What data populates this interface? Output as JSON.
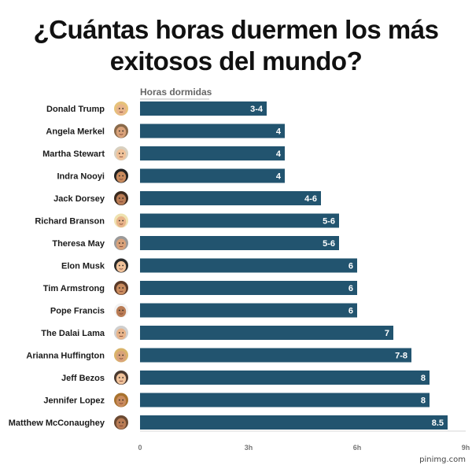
{
  "chart_data": {
    "type": "bar",
    "orientation": "horizontal",
    "title_line1": "¿Cuántas horas duermen los más",
    "title_line2": "exitosos del mundo?",
    "xlabel": "Horas dormidas",
    "xlim": [
      0,
      9
    ],
    "xticks": [
      0,
      3,
      6,
      9
    ],
    "xtick_labels": [
      "0",
      "3h",
      "6h",
      "9h"
    ],
    "grid": false,
    "bar_color": "#22546f",
    "categories": [
      "Donald Trump",
      "Angela Merkel",
      "Martha Stewart",
      "Indra Nooyi",
      "Jack Dorsey",
      "Richard Branson",
      "Theresa May",
      "Elon Musk",
      "Tim Armstrong",
      "Pope Francis",
      "The Dalai Lama",
      "Arianna Huffington",
      "Jeff Bezos",
      "Jennifer Lopez",
      "Matthew McConaughey"
    ],
    "values": [
      3.5,
      4,
      4,
      4,
      5,
      5.5,
      5.5,
      6,
      6,
      6,
      7,
      7.5,
      8,
      8,
      8.5
    ],
    "value_labels": [
      "3-4",
      "4",
      "4",
      "4",
      "4-6",
      "5-6",
      "5-6",
      "6",
      "6",
      "6",
      "7",
      "7-8",
      "8",
      "8",
      "8.5"
    ]
  },
  "watermark": "pinimg.com"
}
